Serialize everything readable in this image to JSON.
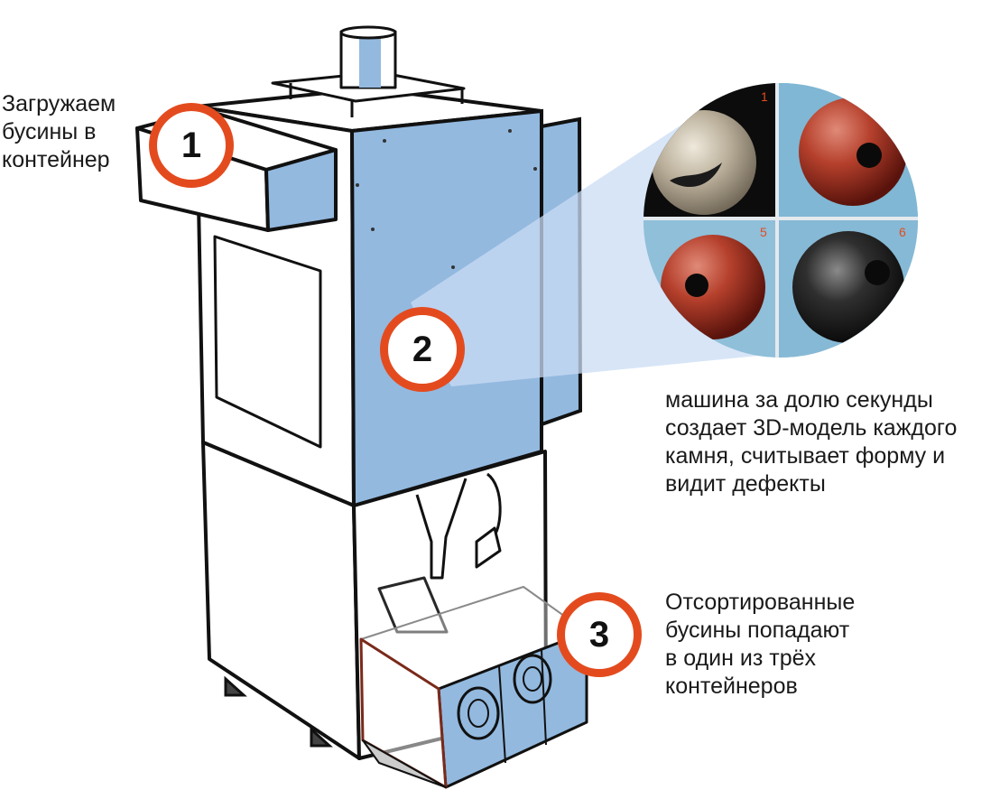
{
  "colors": {
    "accent": "#e34b1f",
    "panel": "#93b9df",
    "outline": "#111111",
    "beam": "#c9dcf4"
  },
  "steps": [
    {
      "number": "1",
      "caption": "Загружаем\nбусины в\nконтейнер"
    },
    {
      "number": "2",
      "caption": "машина за долю секунды\nсоздает 3D-модель каждого\nкамня, считывает форму и\nвидит дефекты"
    },
    {
      "number": "3",
      "caption": "Отсортированные\nбусины попадают\nв один из трёх\nконтейнеров"
    }
  ],
  "inspection_view": {
    "frame_numbers": [
      "1",
      "5",
      "6"
    ]
  }
}
